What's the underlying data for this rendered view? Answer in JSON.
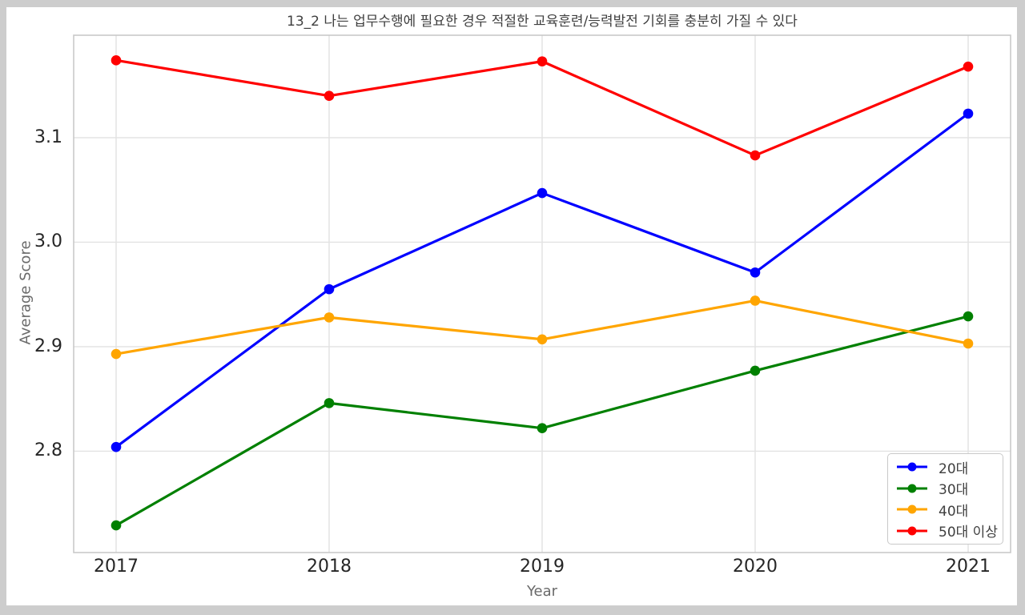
{
  "chart_data": {
    "type": "line",
    "title": "13_2 나는 업무수행에 필요한 경우 적절한 교육훈련/능력발전 기회를 충분히 가질 수 있다",
    "xlabel": "Year",
    "ylabel": "Average Score",
    "x": [
      "2017",
      "2018",
      "2019",
      "2020",
      "2021"
    ],
    "series": [
      {
        "name": "20대",
        "color": "#0000ff",
        "values": [
          2.804,
          2.955,
          3.047,
          2.971,
          3.123
        ]
      },
      {
        "name": "30대",
        "color": "#008000",
        "values": [
          2.729,
          2.846,
          2.822,
          2.877,
          2.929
        ]
      },
      {
        "name": "40대",
        "color": "#ffa500",
        "values": [
          2.893,
          2.928,
          2.907,
          2.944,
          2.903
        ]
      },
      {
        "name": "50대 이상",
        "color": "#ff0000",
        "values": [
          3.174,
          3.14,
          3.173,
          3.083,
          3.168
        ]
      }
    ],
    "ylim": [
      2.703,
      3.198
    ],
    "yticks": [
      2.8,
      2.9,
      3.0,
      3.1
    ],
    "grid": true,
    "legend_position": "lower right"
  },
  "colors": {
    "frame_background": "#cdcdcd",
    "figure_background": "#ffffff",
    "gridline": "#e2e2e2",
    "spine": "#c9c9c9",
    "tick_text": "#262626",
    "label_text": "#6a6a6a",
    "title_text": "#3f3f3f"
  }
}
